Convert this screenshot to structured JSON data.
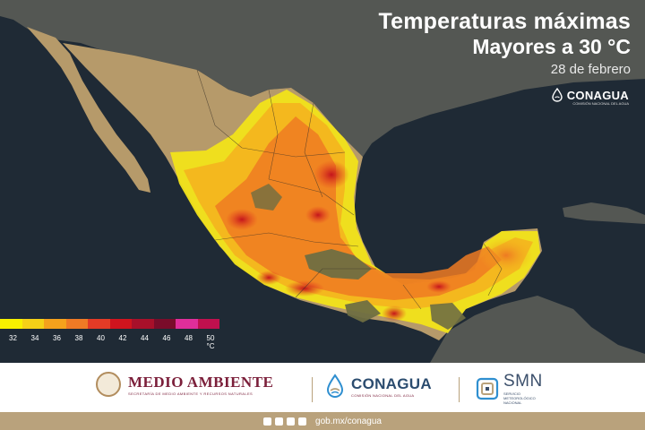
{
  "map": {
    "title_line1": "Temperaturas máximas",
    "title_line2": "Mayores a 30 °C",
    "date": "28 de febrero",
    "top_logo_name": "CONAGUA",
    "top_logo_subtitle": "COMISIÓN NACIONAL DEL AGUA",
    "region": "Mexico",
    "colors": {
      "ocean": "#1f2a35",
      "land_outside": "#5a5a55",
      "land_mexico_base": "#b69a6a",
      "temp_30_34": "#f2e31a",
      "temp_34_36": "#f4b41e",
      "temp_36_38": "#ee7a22",
      "temp_38_40": "#e63b1f",
      "temp_40_plus": "#c4151c",
      "cool_highlands": "#6f6e42"
    }
  },
  "legend": {
    "tick_labels": [
      "32",
      "34",
      "36",
      "38",
      "40",
      "42",
      "44",
      "46",
      "48",
      "50 °C"
    ],
    "swatches": [
      "#f7f000",
      "#f5d017",
      "#f5a11c",
      "#ef7a25",
      "#e33b26",
      "#d0141e",
      "#a8102a",
      "#7a0c2a",
      "#e02e9a",
      "#c0104e"
    ]
  },
  "footer": {
    "medio_ambiente": "MEDIO AMBIENTE",
    "medio_ambiente_sub": "SECRETARÍA DE MEDIO AMBIENTE Y RECURSOS NATURALES",
    "conagua": "CONAGUA",
    "conagua_sub": "COMISIÓN NACIONAL DEL AGUA",
    "smn": "SMN",
    "smn_sub1": "SERVICIO",
    "smn_sub2": "METEOROLÓGICO",
    "smn_sub3": "NACIONAL",
    "url": "gob.mx/conagua",
    "social_icons": [
      "facebook-icon",
      "twitter-icon",
      "instagram-icon",
      "youtube-icon"
    ]
  }
}
